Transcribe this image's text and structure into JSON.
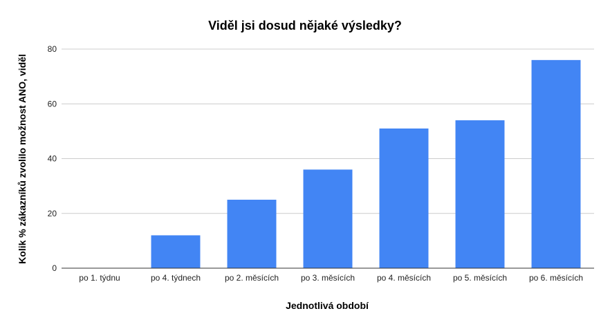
{
  "chart_data": {
    "type": "bar",
    "title": "Viděl jsi dosud nějaké výsledky?",
    "xlabel": "Jednotlivá období",
    "ylabel": "Kolik % zákazníků zvolilo možnost ANO, viděl",
    "categories": [
      "po 1. týdnu",
      "po 4. týdnech",
      "po 2. měsících",
      "po 3. měsících",
      "po 4. měsících",
      "po 5. měsících",
      "po 6. měsících"
    ],
    "values": [
      0,
      12,
      25,
      36,
      51,
      54,
      76
    ],
    "ylim": [
      0,
      80
    ],
    "yticks": [
      0,
      20,
      40,
      60,
      80
    ],
    "ytick_labels": [
      "0",
      "20",
      "40",
      "60",
      "80"
    ],
    "grid": true,
    "legend": "none",
    "bar_color": "#4285f4"
  }
}
